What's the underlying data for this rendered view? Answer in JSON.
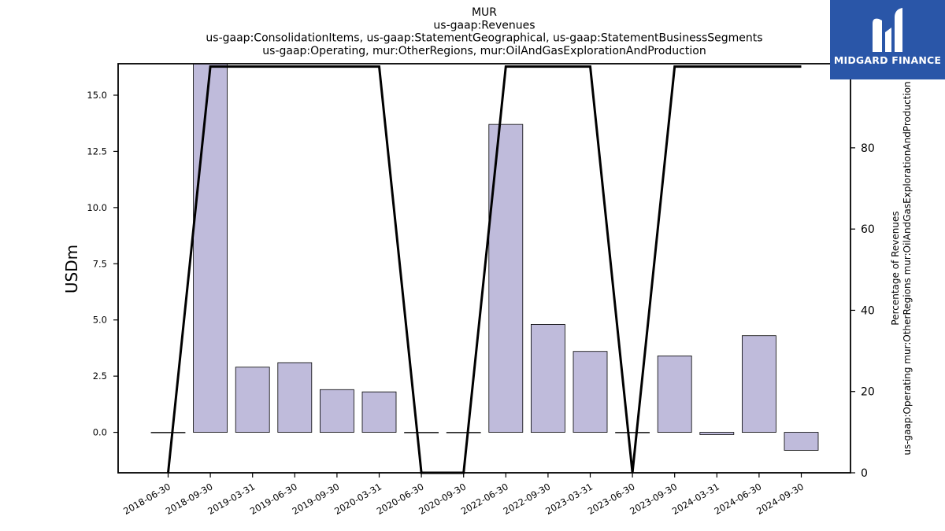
{
  "chart_data": {
    "type": "bar",
    "title_lines": [
      "MUR",
      "us-gaap:Revenues",
      "us-gaap:ConsolidationItems, us-gaap:StatementGeographical, us-gaap:StatementBusinessSegments",
      "us-gaap:Operating, mur:OtherRegions, mur:OilAndGasExplorationAndProduction"
    ],
    "ylabel": "USDm",
    "y2label_lines": [
      "Percentage of Revenues",
      "us-gaap:Operating mur:OtherRegions mur:OilAndGasExplorationAndProduction"
    ],
    "categories": [
      "2018-06-30",
      "2018-09-30",
      "2019-03-31",
      "2019-06-30",
      "2019-09-30",
      "2020-03-31",
      "2020-06-30",
      "2020-09-30",
      "2022-06-30",
      "2022-09-30",
      "2023-03-31",
      "2023-06-30",
      "2023-09-30",
      "2024-03-31",
      "2024-06-30",
      "2024-09-30"
    ],
    "series": [
      {
        "type": "bar",
        "axis": "left",
        "values": [
          0.0,
          16.5,
          2.9,
          3.1,
          1.9,
          1.8,
          0.0,
          0.0,
          13.7,
          4.8,
          3.6,
          0.0,
          3.4,
          -0.1,
          4.3,
          -0.8
        ]
      },
      {
        "type": "line",
        "axis": "right",
        "values": [
          0,
          100,
          100,
          100,
          100,
          100,
          0,
          0,
          100,
          100,
          100,
          0,
          100,
          100,
          100,
          100
        ]
      }
    ],
    "ylim": [
      -1.8,
      16.4
    ],
    "y2lim": [
      0,
      100.7
    ],
    "yticks": [
      "0.0",
      "2.5",
      "5.0",
      "7.5",
      "10.0",
      "12.5",
      "15.0"
    ],
    "ytick_values": [
      0,
      2.5,
      5,
      7.5,
      10,
      12.5,
      15
    ],
    "y2ticks": [
      "0",
      "20",
      "40",
      "60",
      "80",
      "100"
    ],
    "y2tick_values": [
      0,
      20,
      40,
      60,
      80,
      100
    ],
    "grid": false,
    "colors": {
      "bar_fill": "#bfbbdb",
      "bar_stroke": "#000000",
      "line": "#000000"
    }
  },
  "logo": {
    "text": "MIDGARD FINANCE",
    "bg": "#2a56a8"
  }
}
